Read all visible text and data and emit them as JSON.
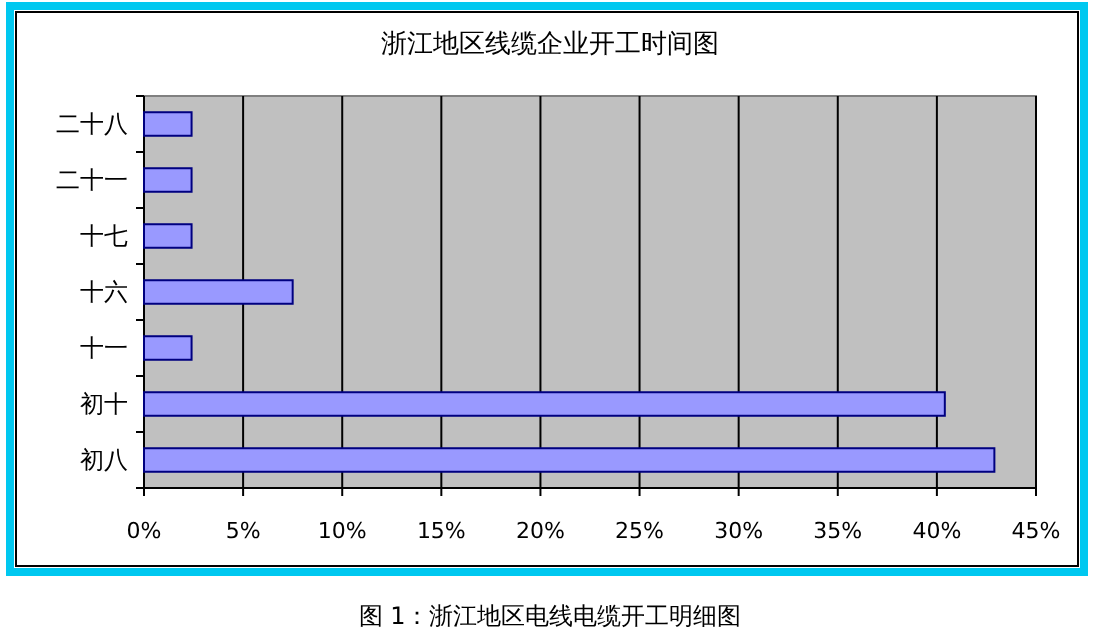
{
  "chart_data": {
    "type": "bar",
    "orientation": "horizontal",
    "title": "浙江地区线缆企业开工时间图",
    "categories": [
      "二十八",
      "二十一",
      "十七",
      "十六",
      "十一",
      "初十",
      "初八"
    ],
    "values": [
      2.4,
      2.4,
      2.4,
      7.5,
      2.4,
      40.4,
      42.9
    ],
    "color": "#9999ff",
    "xlim": [
      0,
      45
    ],
    "xticks": [
      {
        "value": 0,
        "label": "0%"
      },
      {
        "value": 5,
        "label": "5%"
      },
      {
        "value": 10,
        "label": "10%"
      },
      {
        "value": 15,
        "label": "15%"
      },
      {
        "value": 20,
        "label": "20%"
      },
      {
        "value": 25,
        "label": "25%"
      },
      {
        "value": 30,
        "label": "30%"
      },
      {
        "value": 35,
        "label": "35%"
      },
      {
        "value": 40,
        "label": "40%"
      },
      {
        "value": 45,
        "label": "45%"
      }
    ],
    "grid": "x",
    "annotations": [
      "图 1：浙江地区电线电缆开工明细图"
    ]
  }
}
